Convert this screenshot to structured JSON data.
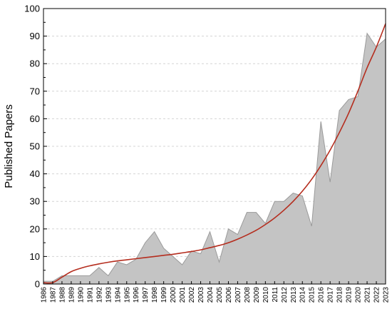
{
  "chart_data": {
    "type": "area",
    "title": "",
    "xlabel": "",
    "ylabel": "Published Papers",
    "ylim": [
      0,
      100
    ],
    "yticks": [
      0,
      10,
      20,
      30,
      40,
      50,
      60,
      70,
      80,
      90,
      100
    ],
    "xlim": [
      1986,
      2023
    ],
    "x": [
      1986,
      1987,
      1988,
      1989,
      1990,
      1991,
      1992,
      1993,
      1994,
      1995,
      1996,
      1997,
      1998,
      1999,
      2000,
      2001,
      2002,
      2003,
      2004,
      2005,
      2006,
      2007,
      2008,
      2009,
      2010,
      2011,
      2012,
      2013,
      2014,
      2015,
      2016,
      2017,
      2018,
      2019,
      2020,
      2021,
      2022,
      2023
    ],
    "series": [
      {
        "kind": "area",
        "values": [
          1,
          1,
          3,
          3,
          3,
          3,
          6,
          3,
          8,
          7,
          9,
          15,
          19,
          13,
          10,
          7,
          12,
          11,
          19,
          8,
          20,
          18,
          26,
          26,
          22,
          30,
          30,
          33,
          32,
          21,
          59,
          37,
          63,
          67,
          68,
          91,
          86,
          89
        ]
      },
      {
        "kind": "trend",
        "values": [
          0.5,
          0.5,
          2.5,
          4.5,
          5.7,
          6.6,
          7.3,
          7.9,
          8.4,
          8.8,
          9.2,
          9.6,
          10.0,
          10.4,
          10.8,
          11.3,
          11.8,
          12.4,
          13.2,
          14.0,
          15.0,
          16.3,
          17.8,
          19.5,
          21.6,
          24.0,
          26.8,
          30.0,
          33.7,
          38.0,
          43.0,
          48.6,
          55.0,
          62.0,
          70.0,
          78.5,
          86.0,
          94.5
        ]
      }
    ],
    "grid": true,
    "colors": {
      "area_fill": "#c4c4c4",
      "area_edge": "#9a9a9a",
      "trend": "#b52d1e",
      "grid": "#d4d4d4"
    }
  }
}
